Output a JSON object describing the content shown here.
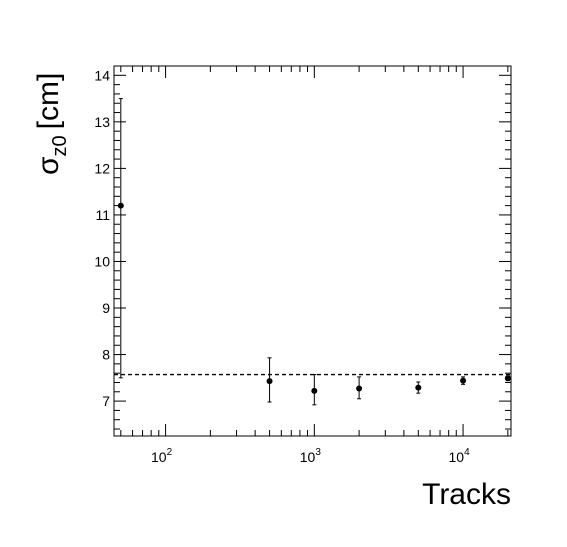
{
  "chart_data": {
    "type": "scatter",
    "xlabel": "Tracks",
    "ylabel_main": "σ",
    "ylabel_sub": "z0",
    "ylabel_unit": "[cm]",
    "x_scale": "log",
    "xlim": [
      45,
      21000
    ],
    "ylim": [
      6.25,
      14.2
    ],
    "x_ticks": [
      {
        "value": 100,
        "base": "10",
        "exp": "2"
      },
      {
        "value": 1000,
        "base": "10",
        "exp": "3"
      },
      {
        "value": 10000,
        "base": "10",
        "exp": "4"
      }
    ],
    "y_ticks": [
      7,
      8,
      9,
      10,
      11,
      12,
      13,
      14
    ],
    "grid": false,
    "reference_line": {
      "y": 7.57,
      "style": "dashed"
    },
    "points": [
      {
        "x": 50,
        "y": 11.2,
        "err_low": 3.7,
        "err_high": 2.3
      },
      {
        "x": 500,
        "y": 7.43,
        "err_low": 0.45,
        "err_high": 0.5
      },
      {
        "x": 1000,
        "y": 7.22,
        "err_low": 0.3,
        "err_high": 0.35
      },
      {
        "x": 2000,
        "y": 7.27,
        "err_low": 0.22,
        "err_high": 0.25
      },
      {
        "x": 5000,
        "y": 7.29,
        "err_low": 0.12,
        "err_high": 0.12
      },
      {
        "x": 10000,
        "y": 7.44,
        "err_low": 0.08,
        "err_high": 0.08
      },
      {
        "x": 20000,
        "y": 7.49,
        "err_low": 0.05,
        "err_high": 0.05
      }
    ]
  }
}
